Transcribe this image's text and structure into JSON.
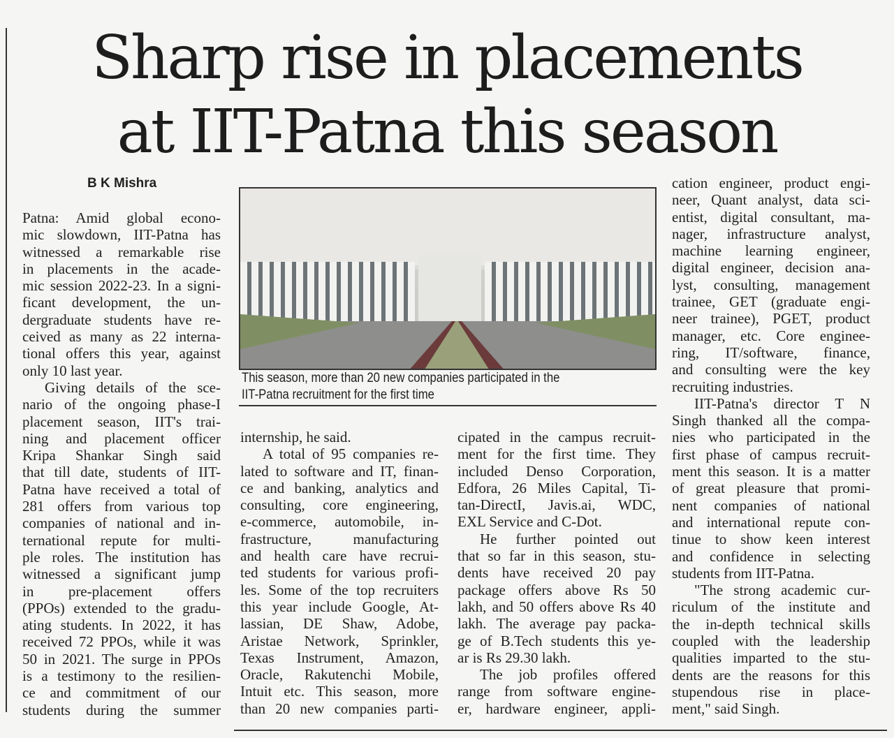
{
  "article": {
    "headline_line1": "Sharp rise in placements",
    "headline_line2": "at IIT-Patna this season",
    "byline": "B K Mishra",
    "photo_caption_line1": "This season, more than 20 new companies participated in the",
    "photo_caption_line2": "IIT-Patna recruitment for the first time",
    "columns": [
      [
        "Patna: Amid global econo-",
        "mic slowdown, IIT-Patna has",
        "witnessed a remarkable rise",
        "in placements in the acade-",
        "mic session 2022-23. In a signi-",
        "ficant development, the un-",
        "dergraduate students have re-",
        "ceived as many as 22 interna-",
        "tional offers this year, against",
        "only 10 last year.",
        "    Giving details of the sce-",
        "nario of the ongoing phase-I",
        "placement season, IIT's trai-",
        "ning and placement officer",
        "Kripa Shankar Singh said",
        "that till date, students of IIT-",
        "Patna have received a total of",
        "281 offers from various top",
        "companies of national and in-",
        "ternational repute for multi-",
        "ple roles. The institution has",
        "witnessed a significant jump",
        "in pre-placement offers",
        "(PPOs) extended to the gradu-",
        "ating students. In 2022, it has",
        "received 72 PPOs, while it was",
        "50 in 2021. The surge in PPOs",
        "is a testimony to the resilien-",
        "ce and commitment of our",
        "students during the summer"
      ],
      [
        "internship, he said.",
        "    A total of 95 companies re-",
        "lated to software and IT, finan-",
        "ce and banking, analytics and",
        "consulting, core engineering,",
        "e-commerce, automobile, in-",
        "frastructure, manufacturing",
        "and health care have recrui-",
        "ted students for various profi-",
        "les. Some of the top recruiters",
        "this year include Google, At-",
        "lassian, DE Shaw, Adobe,",
        "Aristae Network, Sprinkler,",
        "Texas Instrument, Amazon,",
        "Oracle, Rakutenchi Mobile,",
        "Intuit etc. This season, more",
        "than 20 new companies parti-"
      ],
      [
        "cipated in the campus recruit-",
        "ment for the first time. They",
        "included Denso Corporation,",
        "Edfora, 26 Miles Capital, Ti-",
        "tan-DirectI, Javis.ai, WDC,",
        "EXL Service and C-Dot.",
        "    He further pointed out",
        "that so far in this season, stu-",
        "dents have received 20 pay",
        "package offers above Rs 50",
        "lakh, and 50 offers above Rs 40",
        "lakh. The average pay packa-",
        "ge of B.Tech students this ye-",
        "ar is Rs 29.30 lakh.",
        "    The job profiles offered",
        "range from software engine-",
        "er, hardware engineer, appli-"
      ],
      [
        "cation engineer, product engi-",
        "neer, Quant analyst, data sci-",
        "entist, digital consultant, ma-",
        "nager, infrastructure analyst,",
        "machine learning engineer,",
        "digital engineer, decision ana-",
        "lyst, consulting, management",
        "trainee, GET (graduate engi-",
        "neer trainee), PGET, product",
        "manager, etc. Core enginee-",
        "ring, IT/software, finance,",
        "and consulting were the key",
        "recruiting industries.",
        "    IIT-Patna's director T N",
        "Singh thanked all the compa-",
        "nies who participated in the",
        "first phase of campus recruit-",
        "ment this season. It is a matter",
        "of great pleasure that promi-",
        "nent companies of national",
        "and international repute con-",
        "tinue to show keen interest",
        "and confidence in selecting",
        "students from IIT-Patna.",
        "    \"The strong academic cur-",
        "riculum of the institute and",
        "the in-depth technical skills",
        "coupled with the leadership",
        "qualities imparted to the stu-",
        "dents are the reasons for this",
        "stupendous rise in place-",
        "ment,\" said Singh."
      ]
    ]
  }
}
